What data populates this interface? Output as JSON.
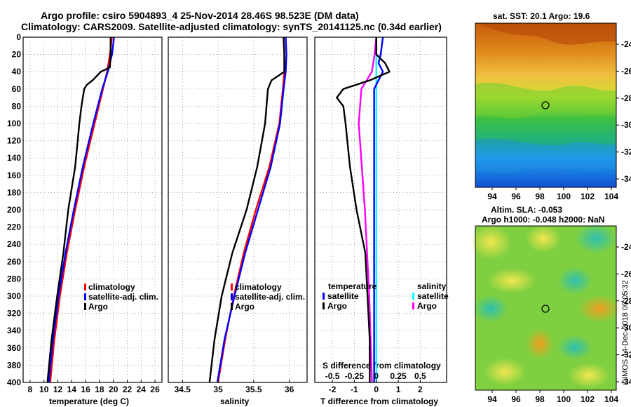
{
  "header": {
    "line1": "Argo profile: csiro 5904893_4 25-Nov-2014 28.46S 98.523E (DM data)",
    "line2": "Climatology: CARS2009. Satellite-adjusted climatology: synTS_20141125.nc (0.34d earlier)"
  },
  "sst_map": {
    "title": "sat. SST: 20.1 Argo: 19.6",
    "yticks": [
      "-24",
      "-26",
      "-28",
      "-30",
      "-32",
      "-34"
    ],
    "xticks": [
      "94",
      "96",
      "98",
      "100",
      "102",
      "104"
    ]
  },
  "sla_map": {
    "title1": "Altim. SLA: -0.053",
    "title2": "Argo h1000: -0.048 h2000: NaN",
    "yticks": [
      "-24",
      "-26",
      "-28",
      "-30",
      "-32",
      "-34"
    ],
    "xticks": [
      "94",
      "96",
      "98",
      "100",
      "102",
      "104"
    ]
  },
  "footer": {
    "credit": "©IMOS 14-Dec-2018 00:05:32"
  },
  "colors": {
    "climatology": "#ff0000",
    "satellite_adj": "#0000ff",
    "argo": "#000000",
    "salinity_satellite": "#00ffff",
    "salinity_argo": "#ff00ff"
  },
  "chart_data": [
    {
      "type": "line",
      "id": "temperature",
      "xlabel": "temperature (deg C)",
      "ylabel": "",
      "xlim": [
        7,
        27
      ],
      "ylim": [
        400,
        0
      ],
      "xticks": [
        8,
        10,
        12,
        14,
        16,
        18,
        20,
        22,
        24,
        26
      ],
      "xtick_labels": [
        "8",
        "10",
        "12",
        "14",
        "16",
        "18",
        "20",
        "22",
        "24",
        "26"
      ],
      "yticks": [
        0,
        20,
        40,
        60,
        80,
        100,
        120,
        140,
        160,
        180,
        200,
        220,
        240,
        260,
        280,
        300,
        320,
        340,
        360,
        380,
        400
      ],
      "ytick_labels": [
        "0",
        "20",
        "40",
        "60",
        "80",
        "100",
        "120",
        "140",
        "160",
        "180",
        "200",
        "220",
        "240",
        "260",
        "280",
        "300",
        "320",
        "340",
        "360",
        "380",
        "400"
      ],
      "legend": [
        "climatology",
        "satellite-adj. clim.",
        "Argo"
      ],
      "series": [
        {
          "name": "climatology",
          "depth": [
            0,
            20,
            40,
            60,
            100,
            150,
            200,
            250,
            300,
            350,
            400
          ],
          "values": [
            19.8,
            19.5,
            19.1,
            18.5,
            17.3,
            15.8,
            14.5,
            13.3,
            12.3,
            11.5,
            10.9
          ]
        },
        {
          "name": "satellite-adj. clim.",
          "depth": [
            0,
            20,
            40,
            60,
            100,
            150,
            200,
            250,
            300,
            350,
            400
          ],
          "values": [
            20.1,
            19.8,
            19.2,
            18.4,
            17.1,
            15.6,
            14.3,
            13.1,
            12.1,
            11.3,
            10.7
          ]
        },
        {
          "name": "Argo",
          "depth": [
            0,
            20,
            35,
            40,
            50,
            55,
            60,
            80,
            100,
            150,
            200,
            250,
            300,
            350,
            400
          ],
          "values": [
            19.6,
            19.6,
            19.5,
            18.2,
            17.0,
            16.2,
            15.8,
            15.4,
            15.1,
            14.5,
            13.5,
            12.8,
            11.9,
            11.1,
            10.5
          ]
        }
      ]
    },
    {
      "type": "line",
      "id": "salinity",
      "xlabel": "salinity",
      "ylabel": "",
      "xlim": [
        34.3,
        36.25
      ],
      "ylim": [
        400,
        0
      ],
      "xticks": [
        34.5,
        35,
        35.5,
        36
      ],
      "xtick_labels": [
        "34.5",
        "35",
        "35.5",
        "36"
      ],
      "legend": [
        "climatology",
        "satellite-adj. clim.",
        "Argo"
      ],
      "series": [
        {
          "name": "climatology",
          "depth": [
            0,
            20,
            40,
            60,
            100,
            150,
            200,
            250,
            300,
            350,
            400
          ],
          "values": [
            35.92,
            35.93,
            35.93,
            35.91,
            35.86,
            35.72,
            35.53,
            35.36,
            35.22,
            35.1,
            35.0
          ]
        },
        {
          "name": "satellite-adj. clim.",
          "depth": [
            0,
            20,
            40,
            60,
            100,
            150,
            200,
            250,
            300,
            350,
            400
          ],
          "values": [
            35.95,
            35.96,
            35.95,
            35.92,
            35.87,
            35.74,
            35.56,
            35.38,
            35.23,
            35.09,
            34.99
          ]
        },
        {
          "name": "Argo",
          "depth": [
            0,
            20,
            40,
            50,
            60,
            80,
            100,
            150,
            200,
            250,
            300,
            350,
            400
          ],
          "values": [
            35.92,
            35.93,
            35.93,
            35.75,
            35.7,
            35.68,
            35.66,
            35.55,
            35.4,
            35.2,
            35.05,
            34.95,
            34.88
          ]
        }
      ]
    },
    {
      "type": "line",
      "id": "difference",
      "xlabel": "T difference from climatology",
      "xlabel_secondary": "S difference from climatology",
      "xlim": [
        -2.8,
        3.2
      ],
      "ylim": [
        400,
        0
      ],
      "xticks": [
        -2,
        -1,
        0,
        1,
        2
      ],
      "xtick_labels": [
        "-2",
        "-1",
        "0",
        "1",
        "2"
      ],
      "xticks_secondary": [
        -0.5,
        -0.25,
        0,
        0.25,
        0.5
      ],
      "xtick_labels_secondary": [
        "-0.5",
        "-0.25",
        "0",
        "0.25",
        "0.5"
      ],
      "legend_temperature_title": "temperature",
      "legend_salinity_title": "salinity",
      "legend": [
        "satellite",
        "Argo",
        "satellite",
        "Argo"
      ],
      "series": [
        {
          "name": "temperature satellite",
          "depth": [
            0,
            20,
            30,
            40,
            60,
            100,
            200,
            300,
            400
          ],
          "values": [
            0.3,
            0.2,
            0.1,
            0.3,
            -0.1,
            -0.1,
            -0.1,
            -0.1,
            -0.1
          ]
        },
        {
          "name": "temperature Argo",
          "depth": [
            0,
            20,
            30,
            40,
            50,
            60,
            70,
            80,
            100,
            150,
            200,
            250,
            300,
            350,
            400
          ],
          "values": [
            0.0,
            0.0,
            0.4,
            0.6,
            -0.3,
            -1.5,
            -1.8,
            -1.5,
            -1.4,
            -1.2,
            -0.9,
            -0.5,
            -0.4,
            -0.3,
            -0.3
          ]
        },
        {
          "name": "salinity satellite",
          "depth": [
            0,
            40,
            100,
            200,
            300,
            400
          ],
          "values": [
            0.0,
            0.0,
            0.0,
            0.0,
            0.0,
            0.0
          ]
        },
        {
          "name": "salinity Argo",
          "depth": [
            0,
            20,
            40,
            60,
            100,
            200,
            300,
            400
          ],
          "values": [
            0.0,
            -0.02,
            -0.05,
            -0.17,
            -0.2,
            -0.13,
            -0.08,
            -0.05
          ]
        }
      ]
    }
  ]
}
